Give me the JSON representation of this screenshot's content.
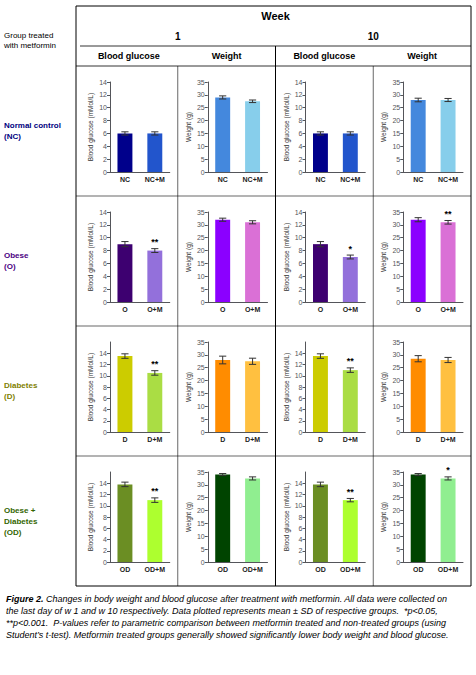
{
  "title": "Week",
  "week_labels": [
    "1",
    "10"
  ],
  "column_headers": [
    "Blood glucose",
    "Weight",
    "Blood glucose",
    "Weight"
  ],
  "row_header": "Group treated\nwith metformin",
  "row_labels": [
    {
      "text": "Normal control\n(NC)",
      "color": "#000080"
    },
    {
      "text": "Obese\n(O)",
      "color": "#4B0082"
    },
    {
      "text": "Diabetes\n(D)",
      "color": "#808000"
    },
    {
      "text": "Obese +\nDiabetes\n(OD)",
      "color": "#336600"
    }
  ],
  "caption_bold": "Figure 2.",
  "caption": "Changes in body weight and blood glucose after treatment with metformin. All data were collected on the last day of w 1 and w 10 respectively. Data plotted represents mean ± SD of respective groups.  *p<0.05,  **p<0.001.  P-values refer to parametric comparison between metformin treated and non-treated groups (using Student’s t-test). Metformin treated groups generally showed significantly lower body weight and blood glucose.",
  "chart_data": [
    {
      "type": "bar",
      "categories": [
        "NC",
        "NC+M"
      ],
      "values": [
        6.0,
        6.0
      ],
      "colors": [
        "#00008B",
        "#2255CC"
      ],
      "errors": [
        0.25,
        0.25
      ],
      "ylabel": "Blood glucose (mMol/L)",
      "ylim": [
        0,
        14
      ],
      "yticks": [
        0,
        2,
        4,
        6,
        8,
        10,
        12,
        14
      ],
      "grid": false
    },
    {
      "type": "bar",
      "categories": [
        "NC",
        "NC+M"
      ],
      "values": [
        29.0,
        27.5
      ],
      "colors": [
        "#4488DD",
        "#87CEEB"
      ],
      "errors": [
        0.6,
        0.5
      ],
      "ylabel": "Weight (g)",
      "ylim": [
        0,
        35
      ],
      "yticks": [
        0,
        5,
        10,
        15,
        20,
        25,
        30,
        35
      ],
      "grid": false
    },
    {
      "type": "bar",
      "categories": [
        "NC",
        "NC+M"
      ],
      "values": [
        6.0,
        6.0
      ],
      "colors": [
        "#00008B",
        "#2255CC"
      ],
      "errors": [
        0.25,
        0.25
      ],
      "ylabel": "Blood glucose (mMol/L)",
      "ylim": [
        0,
        14
      ],
      "yticks": [
        0,
        2,
        4,
        6,
        8,
        10,
        12,
        14
      ],
      "grid": false
    },
    {
      "type": "bar",
      "categories": [
        "NC",
        "NC+M"
      ],
      "values": [
        28.0,
        28.0
      ],
      "colors": [
        "#4488DD",
        "#87CEEB"
      ],
      "errors": [
        0.7,
        0.6
      ],
      "ylabel": "Weight (g)",
      "ylim": [
        0,
        35
      ],
      "yticks": [
        0,
        5,
        10,
        15,
        20,
        25,
        30,
        35
      ],
      "grid": false
    },
    {
      "type": "bar",
      "categories": [
        "O",
        "O+M"
      ],
      "values": [
        9.0,
        8.0
      ],
      "colors": [
        "#3D0070",
        "#9370DB"
      ],
      "errors": [
        0.4,
        0.3
      ],
      "ylabel": "Blood glucose (mMol/L)",
      "ylim": [
        0,
        14
      ],
      "yticks": [
        0,
        2,
        4,
        6,
        8,
        10,
        12,
        14
      ],
      "grid": false,
      "annotations": [
        {
          "category": "O+M",
          "text": "**"
        }
      ]
    },
    {
      "type": "bar",
      "categories": [
        "O",
        "O+M"
      ],
      "values": [
        32.0,
        31.0
      ],
      "colors": [
        "#8B00FF",
        "#DA70D6"
      ],
      "errors": [
        0.6,
        0.6
      ],
      "ylabel": "Weight (g)",
      "ylim": [
        0,
        35
      ],
      "yticks": [
        0,
        5,
        10,
        15,
        20,
        25,
        30,
        35
      ],
      "grid": false
    },
    {
      "type": "bar",
      "categories": [
        "O",
        "O+M"
      ],
      "values": [
        9.0,
        7.0
      ],
      "colors": [
        "#3D0070",
        "#9370DB"
      ],
      "errors": [
        0.4,
        0.3
      ],
      "ylabel": "Blood glucose (mMol/L)",
      "ylim": [
        0,
        14
      ],
      "yticks": [
        0,
        2,
        4,
        6,
        8,
        10,
        12,
        14
      ],
      "grid": false,
      "annotations": [
        {
          "category": "O+M",
          "text": "*"
        }
      ]
    },
    {
      "type": "bar",
      "categories": [
        "O",
        "O+M"
      ],
      "values": [
        32.0,
        31.0
      ],
      "colors": [
        "#8B00FF",
        "#DA70D6"
      ],
      "errors": [
        0.8,
        0.7
      ],
      "ylabel": "Weight (g)",
      "ylim": [
        0,
        35
      ],
      "yticks": [
        0,
        5,
        10,
        15,
        20,
        25,
        30,
        35
      ],
      "grid": false,
      "annotations": [
        {
          "category": "O+M",
          "text": "**"
        }
      ]
    },
    {
      "type": "bar",
      "categories": [
        "D",
        "D+M"
      ],
      "values": [
        13.5,
        10.5
      ],
      "colors": [
        "#CCCC00",
        "#AADD44"
      ],
      "errors": [
        0.4,
        0.4
      ],
      "ylabel": "Blood glucose (mMol/L)",
      "ylim": [
        0,
        16
      ],
      "yticks": [
        0,
        2,
        4,
        6,
        8,
        10,
        12,
        14
      ],
      "grid": false,
      "annotations": [
        {
          "category": "D+M",
          "text": "**"
        }
      ]
    },
    {
      "type": "bar",
      "categories": [
        "D",
        "D+M"
      ],
      "values": [
        28.0,
        27.5
      ],
      "colors": [
        "#FF8C00",
        "#FFC040"
      ],
      "errors": [
        1.5,
        1.2
      ],
      "ylabel": "Weight (g)",
      "ylim": [
        0,
        35
      ],
      "yticks": [
        0,
        5,
        10,
        15,
        20,
        25,
        30,
        35
      ],
      "grid": false
    },
    {
      "type": "bar",
      "categories": [
        "D",
        "D+M"
      ],
      "values": [
        13.5,
        11.0
      ],
      "colors": [
        "#CCCC00",
        "#AADD44"
      ],
      "errors": [
        0.4,
        0.4
      ],
      "ylabel": "Blood glucose (mMol/L)",
      "ylim": [
        0,
        16
      ],
      "yticks": [
        0,
        2,
        4,
        6,
        8,
        10,
        12,
        14
      ],
      "grid": false,
      "annotations": [
        {
          "category": "D+M",
          "text": "**"
        }
      ]
    },
    {
      "type": "bar",
      "categories": [
        "D",
        "D+M"
      ],
      "values": [
        28.5,
        28.0
      ],
      "colors": [
        "#FF8C00",
        "#FFC040"
      ],
      "errors": [
        1.2,
        1.0
      ],
      "ylabel": "Weight (g)",
      "ylim": [
        0,
        35
      ],
      "yticks": [
        0,
        5,
        10,
        15,
        20,
        25,
        30,
        35
      ],
      "grid": false
    },
    {
      "type": "bar",
      "categories": [
        "OD",
        "OD+M"
      ],
      "values": [
        13.8,
        11.0
      ],
      "colors": [
        "#6B8E23",
        "#ADFF2F"
      ],
      "errors": [
        0.4,
        0.4
      ],
      "ylabel": "Blood glucose (mMol/L)",
      "ylim": [
        0,
        16
      ],
      "yticks": [
        0,
        2,
        4,
        6,
        8,
        10,
        12,
        14
      ],
      "grid": false,
      "annotations": [
        {
          "category": "OD+M",
          "text": "**"
        }
      ]
    },
    {
      "type": "bar",
      "categories": [
        "OD",
        "OD+M"
      ],
      "values": [
        34.0,
        32.5
      ],
      "colors": [
        "#004400",
        "#90EE90"
      ],
      "errors": [
        0.4,
        0.6
      ],
      "ylabel": "Weight (g)",
      "ylim": [
        0,
        35
      ],
      "yticks": [
        0,
        5,
        10,
        15,
        20,
        25,
        30,
        35
      ],
      "grid": false
    },
    {
      "type": "bar",
      "categories": [
        "OD",
        "OD+M"
      ],
      "values": [
        13.8,
        11.0
      ],
      "colors": [
        "#6B8E23",
        "#ADFF2F"
      ],
      "errors": [
        0.4,
        0.3
      ],
      "ylabel": "Blood glucose (mMol/L)",
      "ylim": [
        0,
        16
      ],
      "yticks": [
        0,
        2,
        4,
        6,
        8,
        10,
        12,
        14
      ],
      "grid": false,
      "annotations": [
        {
          "category": "OD+M",
          "text": "**"
        }
      ]
    },
    {
      "type": "bar",
      "categories": [
        "OD",
        "OD+M"
      ],
      "values": [
        34.0,
        32.5
      ],
      "colors": [
        "#004400",
        "#90EE90"
      ],
      "errors": [
        0.4,
        0.6
      ],
      "ylabel": "Weight (g)",
      "ylim": [
        0,
        35
      ],
      "yticks": [
        0,
        5,
        10,
        15,
        20,
        25,
        30,
        35
      ],
      "grid": false,
      "annotations": [
        {
          "category": "OD+M",
          "text": "*"
        }
      ]
    }
  ]
}
